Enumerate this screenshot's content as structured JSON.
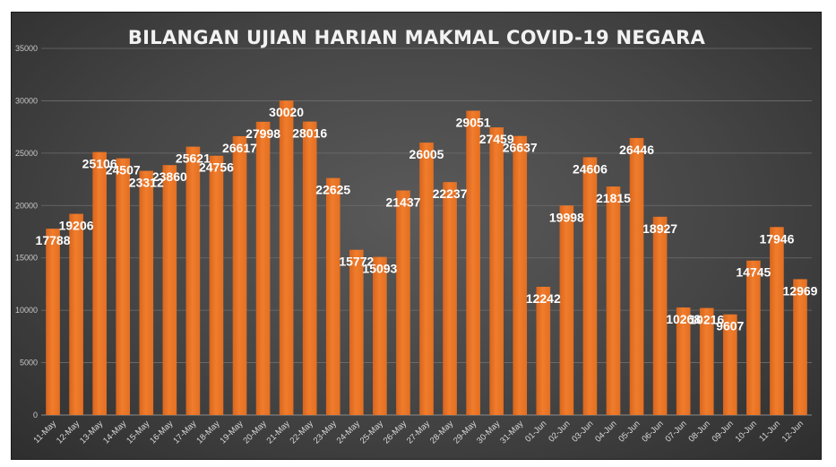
{
  "chart_data": {
    "type": "bar",
    "title": "BILANGAN UJIAN HARIAN MAKMAL COVID-19 NEGARA",
    "xlabel": "",
    "ylabel": "",
    "ylim": [
      0,
      35000
    ],
    "yticks": [
      "0",
      "5000",
      "10000",
      "15000",
      "20000",
      "25000",
      "30000",
      "35000"
    ],
    "grid": true,
    "legend": "none",
    "bar_color": "#f07c2c",
    "categories": [
      "11-May",
      "12-May",
      "13-May",
      "14-May",
      "15-May",
      "16-May",
      "17-May",
      "18-May",
      "19-May",
      "20-May",
      "21-May",
      "22-May",
      "23-May",
      "24-May",
      "25-May",
      "26-May",
      "27-May",
      "28-May",
      "29-May",
      "30-May",
      "31-May",
      "01-Jun",
      "02-Jun",
      "03-Jun",
      "04-Jun",
      "05-Jun",
      "06-Jun",
      "07-Jun",
      "08-Jun",
      "09-Jun",
      "10-Jun",
      "11-Jun",
      "12-Jun"
    ],
    "values": [
      17788,
      19206,
      25106,
      24507,
      23312,
      23860,
      25621,
      24756,
      26617,
      27998,
      30020,
      28016,
      22625,
      15772,
      15093,
      21437,
      26005,
      22237,
      29051,
      27459,
      26637,
      12242,
      19998,
      24606,
      21815,
      26446,
      18927,
      10268,
      10216,
      9607,
      14745,
      17946,
      12969
    ],
    "data_labels": [
      "17788",
      "19206",
      "25106",
      "24507",
      "23312",
      "23860",
      "25621",
      "24756",
      "26617",
      "27998",
      "30020",
      "28016",
      "22625",
      "15772",
      "15093",
      "21437",
      "26005",
      "22237",
      "29051",
      "27459",
      "26637",
      "12242",
      "19998",
      "24606",
      "21815",
      "26446",
      "18927",
      "10268",
      "10216",
      "9607",
      "14745",
      "17946",
      "12969"
    ]
  }
}
